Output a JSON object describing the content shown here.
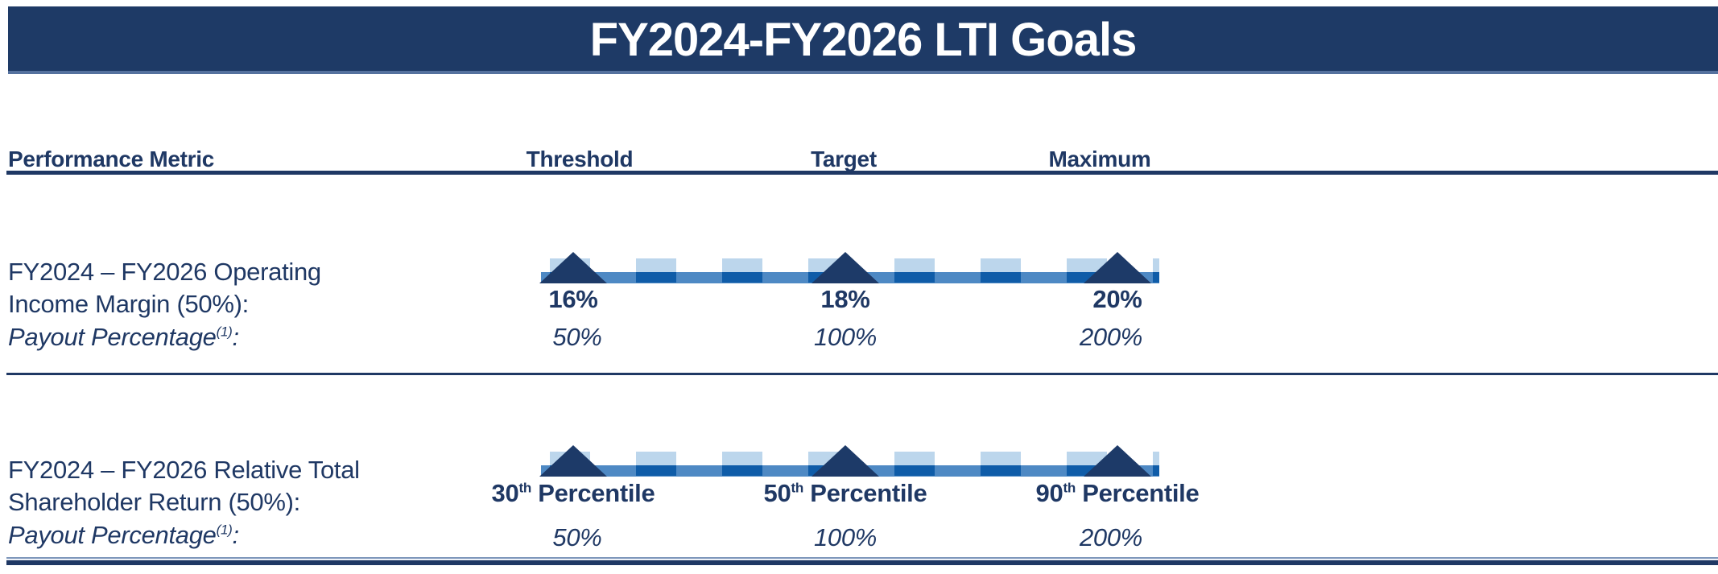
{
  "header": {
    "title": "FY2024-FY2026 LTI Goals"
  },
  "table": {
    "columns": {
      "metric": "Performance Metric",
      "threshold": "Threshold",
      "target": "Target",
      "maximum": "Maximum"
    },
    "rows": [
      {
        "metric_line1": "FY2024 – FY2026 Operating",
        "metric_line2": "Income Margin (50%):",
        "payout_label": "Payout Percentage",
        "payout_footnote": "(1)",
        "payout_suffix": ":",
        "scale": [
          {
            "value": "16%",
            "sup": "",
            "suffix": ""
          },
          {
            "value": "18%",
            "sup": "",
            "suffix": ""
          },
          {
            "value": "20%",
            "sup": "",
            "suffix": ""
          }
        ],
        "payouts": [
          "50%",
          "100%",
          "200%"
        ]
      },
      {
        "metric_line1": "FY2024 – FY2026 Relative Total",
        "metric_line2": "Shareholder Return (50%):",
        "payout_label": "Payout Percentage",
        "payout_footnote": "(1)",
        "payout_suffix": ":",
        "scale": [
          {
            "value": "30",
            "sup": "th",
            "suffix": " Percentile"
          },
          {
            "value": "50",
            "sup": "th",
            "suffix": " Percentile"
          },
          {
            "value": "90",
            "sup": "th",
            "suffix": " Percentile"
          }
        ],
        "payouts": [
          "50%",
          "100%",
          "200%"
        ]
      }
    ]
  },
  "colors": {
    "navy": "#1f3864",
    "banner": "#1e3a66",
    "banner_edge": "#55719e",
    "bar": "#4e89c4",
    "tick_light": "#bcd6ec",
    "tick_overlap": "#0f5ca8",
    "triangle": "#1d3a68"
  }
}
